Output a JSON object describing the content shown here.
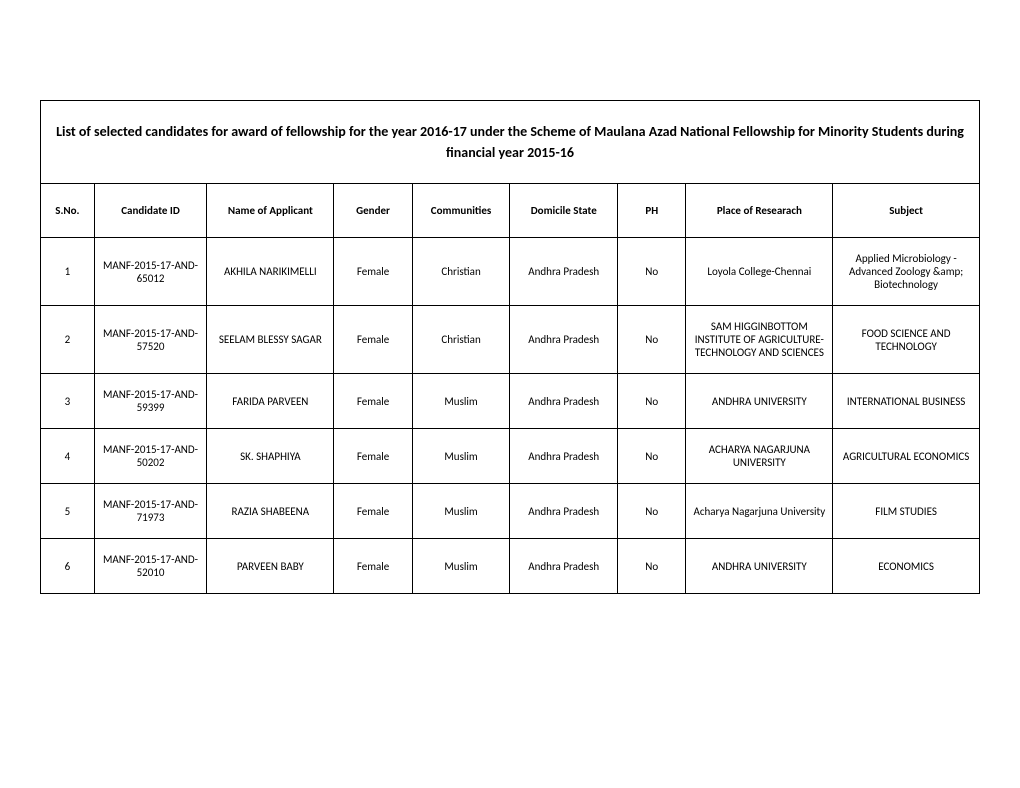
{
  "title": "List of selected candidates for award of fellowship for the year 2016-17 under the Scheme of Maulana Azad National Fellowship for Minority   Students during financial year 2015-16",
  "columns": {
    "sno": "S.No.",
    "id": "Candidate ID",
    "name": "Name of Applicant",
    "gender": "Gender",
    "comm": "Communities",
    "state": "Domicile State",
    "ph": "PH",
    "place": "Place of Researach",
    "subject": "Subject"
  },
  "rows": [
    {
      "sno": "1",
      "id": "MANF-2015-17-AND-65012",
      "name": "AKHILA NARIKIMELLI",
      "gender": "Female",
      "comm": "Christian",
      "state": "Andhra Pradesh",
      "ph": "No",
      "place": "Loyola College-Chennai",
      "subject": "Applied Microbiology - Advanced Zoology &amp; Biotechnology"
    },
    {
      "sno": "2",
      "id": "MANF-2015-17-AND-57520",
      "name": "SEELAM BLESSY SAGAR",
      "gender": "Female",
      "comm": "Christian",
      "state": "Andhra Pradesh",
      "ph": "No",
      "place": "SAM HIGGINBOTTOM INSTITUTE OF AGRICULTURE-TECHNOLOGY AND SCIENCES",
      "subject": "FOOD SCIENCE AND TECHNOLOGY"
    },
    {
      "sno": "3",
      "id": "MANF-2015-17-AND-59399",
      "name": "FARIDA PARVEEN",
      "gender": "Female",
      "comm": "Muslim",
      "state": "Andhra Pradesh",
      "ph": "No",
      "place": "ANDHRA UNIVERSITY",
      "subject": "INTERNATIONAL BUSINESS"
    },
    {
      "sno": "4",
      "id": "MANF-2015-17-AND-50202",
      "name": "SK. SHAPHIYA",
      "gender": "Female",
      "comm": "Muslim",
      "state": "Andhra Pradesh",
      "ph": "No",
      "place": "ACHARYA NAGARJUNA UNIVERSITY",
      "subject": "AGRICULTURAL ECONOMICS"
    },
    {
      "sno": "5",
      "id": "MANF-2015-17-AND-71973",
      "name": "RAZIA SHABEENA",
      "gender": "Female",
      "comm": "Muslim",
      "state": "Andhra Pradesh",
      "ph": "No",
      "place": "Acharya Nagarjuna University",
      "subject": "FILM STUDIES"
    },
    {
      "sno": "6",
      "id": "MANF-2015-17-AND-52010",
      "name": "PARVEEN BABY",
      "gender": "Female",
      "comm": "Muslim",
      "state": "Andhra Pradesh",
      "ph": "No",
      "place": "ANDHRA UNIVERSITY",
      "subject": "ECONOMICS"
    }
  ]
}
